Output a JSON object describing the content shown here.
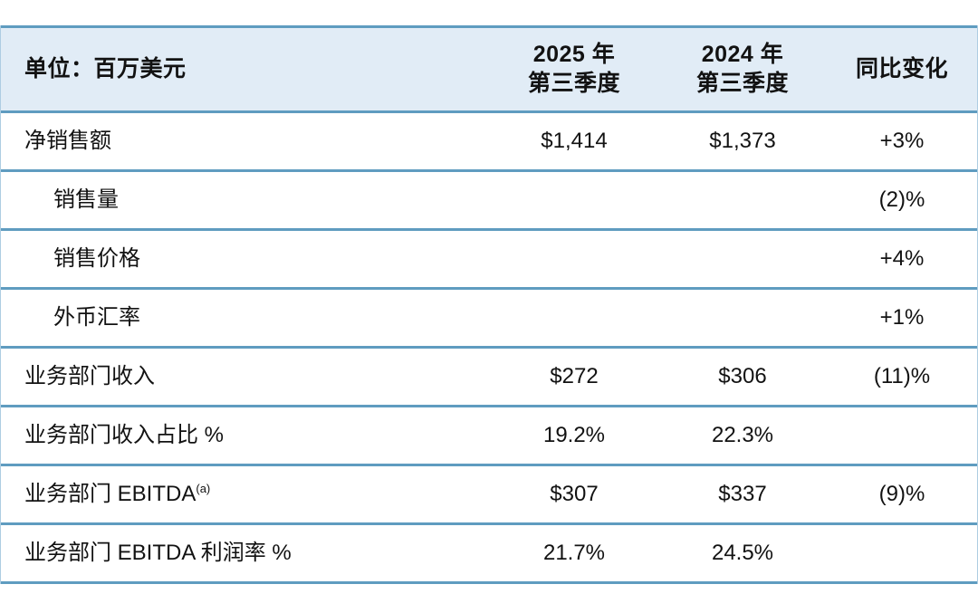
{
  "table": {
    "colors": {
      "header_bg": "#e1ecf6",
      "line": "#5f9cc0",
      "text": "#121212",
      "page_bg": "#ffffff"
    },
    "header": {
      "unit_label": "单位：百万美元",
      "col_2025": "2025 年\n第三季度",
      "col_2024": "2024 年\n第三季度",
      "col_yoy": "同比变化"
    },
    "rows": [
      {
        "label": "净销售额",
        "indent": false,
        "v2025": "$1,414",
        "v2024": "$1,373",
        "yoy": "+3%"
      },
      {
        "label": "销售量",
        "indent": true,
        "v2025": "",
        "v2024": "",
        "yoy": "(2)%"
      },
      {
        "label": "销售价格",
        "indent": true,
        "v2025": "",
        "v2024": "",
        "yoy": "+4%"
      },
      {
        "label": "外币汇率",
        "indent": true,
        "v2025": "",
        "v2024": "",
        "yoy": "+1%"
      },
      {
        "label": "业务部门收入",
        "indent": false,
        "v2025": "$272",
        "v2024": "$306",
        "yoy": "(11)%"
      },
      {
        "label": "业务部门收入占比 %",
        "indent": false,
        "v2025": "19.2%",
        "v2024": "22.3%",
        "yoy": ""
      },
      {
        "label": "业务部门 EBITDA",
        "label_sup": "(a)",
        "indent": false,
        "v2025": "$307",
        "v2024": "$337",
        "yoy": "(9)%"
      },
      {
        "label": "业务部门 EBITDA 利润率 %",
        "indent": false,
        "v2025": "21.7%",
        "v2024": "24.5%",
        "yoy": ""
      }
    ]
  }
}
